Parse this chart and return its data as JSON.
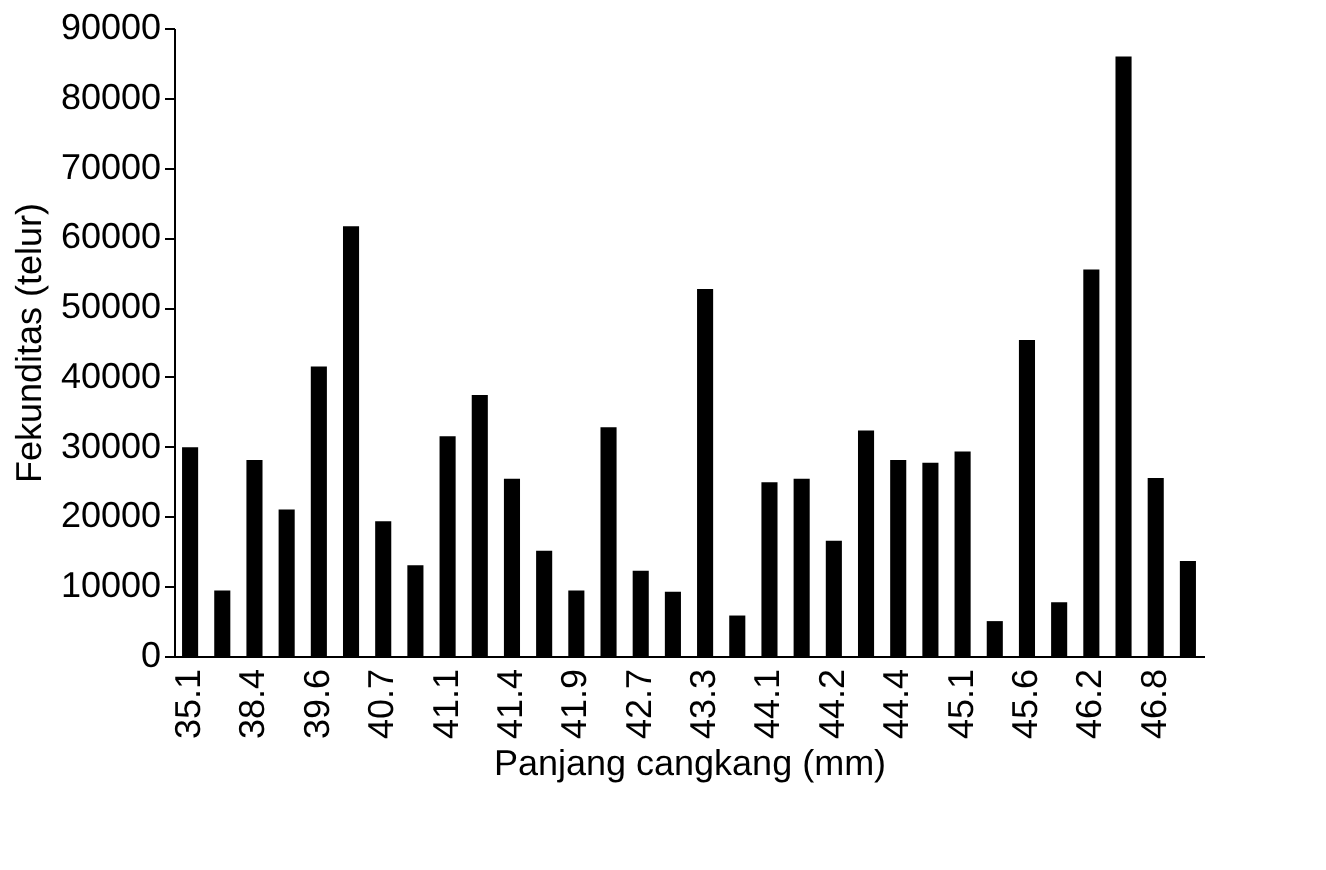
{
  "chart_data": {
    "type": "bar",
    "xlabel": "Panjang cangkang (mm)",
    "ylabel": "Fekunditas (telur)",
    "categories": [
      "35.1",
      null,
      "38.4",
      null,
      "39.6",
      null,
      "40.7",
      null,
      "41.1",
      null,
      "41.4",
      null,
      "41.9",
      null,
      "42.7",
      null,
      "43.3",
      null,
      "44.1",
      null,
      "44.2",
      null,
      "44.4",
      null,
      "45.1",
      null,
      "45.6",
      null,
      "46.2",
      null,
      "46.8",
      null
    ],
    "values": [
      29900,
      9400,
      28100,
      21000,
      41500,
      61600,
      19300,
      13000,
      31500,
      37400,
      25400,
      15100,
      9400,
      32800,
      12200,
      9200,
      52600,
      5800,
      24900,
      25400,
      16500,
      32300,
      28100,
      27700,
      29300,
      5000,
      45300,
      7700,
      55400,
      85900,
      25500,
      13600
    ],
    "color": "#000000",
    "ylim": [
      0,
      90000
    ],
    "yticks": [
      0,
      10000,
      20000,
      30000,
      40000,
      50000,
      60000,
      70000,
      80000,
      90000
    ],
    "grid": false
  }
}
